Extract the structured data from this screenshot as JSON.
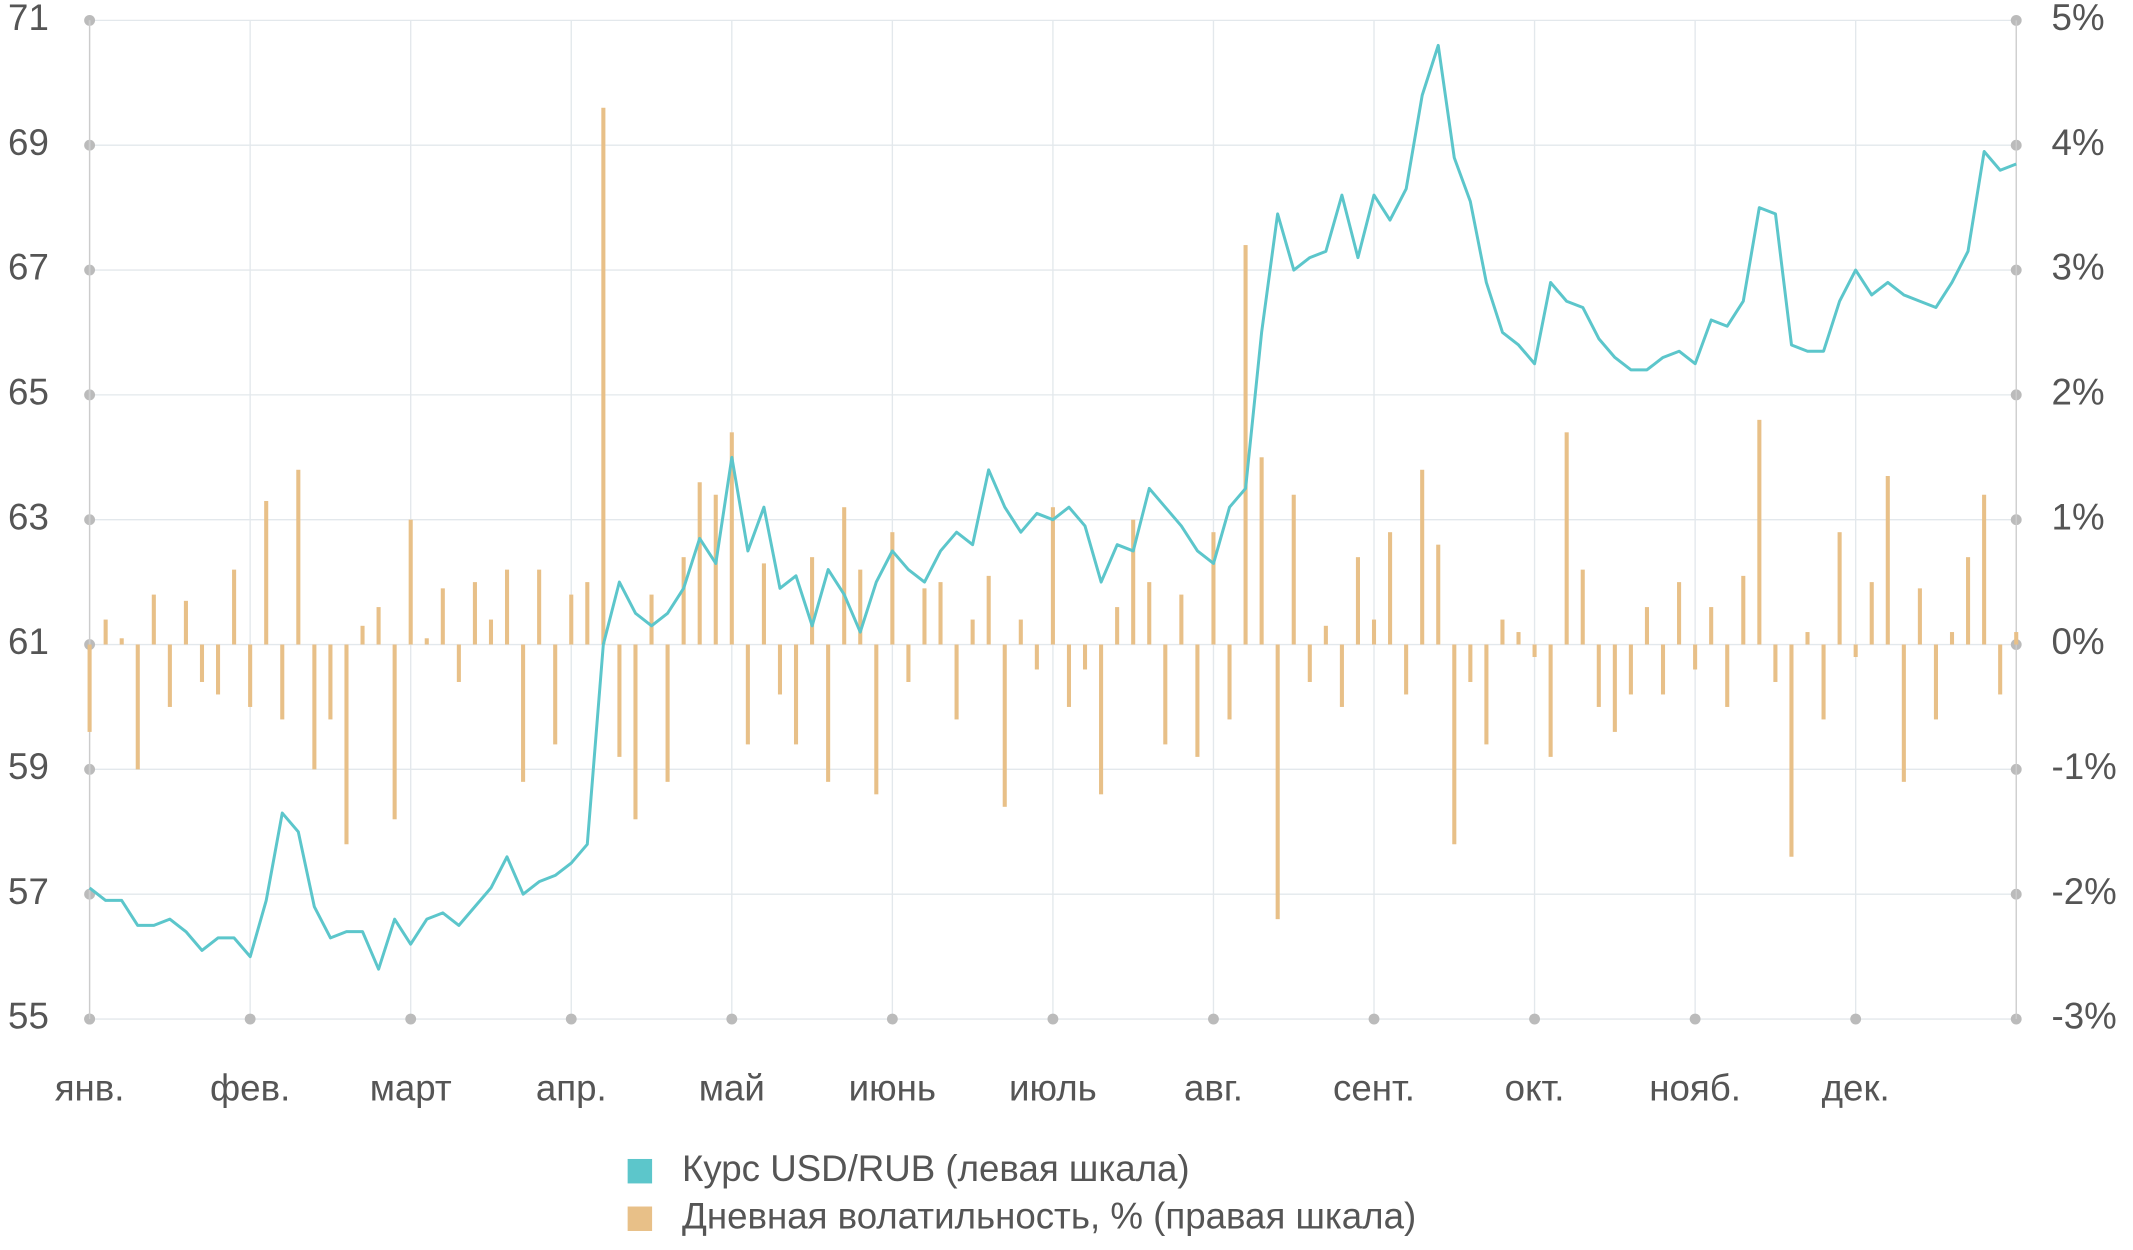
{
  "chart_data": {
    "type": "bar-line",
    "x": [
      0,
      0.1,
      0.2,
      0.3,
      0.4,
      0.5,
      0.6,
      0.7,
      0.8,
      0.9,
      1,
      1.1,
      1.2,
      1.3,
      1.4,
      1.5,
      1.6,
      1.7,
      1.8,
      1.9,
      2,
      2.1,
      2.2,
      2.3,
      2.4,
      2.5,
      2.6,
      2.7,
      2.8,
      2.9,
      3,
      3.1,
      3.2,
      3.3,
      3.4,
      3.5,
      3.6,
      3.7,
      3.8,
      3.9,
      4,
      4.1,
      4.2,
      4.3,
      4.4,
      4.5,
      4.6,
      4.7,
      4.8,
      4.9,
      5,
      5.1,
      5.2,
      5.3,
      5.4,
      5.5,
      5.6,
      5.7,
      5.8,
      5.9,
      6,
      6.1,
      6.2,
      6.3,
      6.4,
      6.5,
      6.6,
      6.7,
      6.8,
      6.9,
      7,
      7.1,
      7.2,
      7.3,
      7.4,
      7.5,
      7.6,
      7.7,
      7.8,
      7.9,
      8,
      8.1,
      8.2,
      8.3,
      8.4,
      8.5,
      8.6,
      8.7,
      8.8,
      8.9,
      9,
      9.1,
      9.2,
      9.3,
      9.4,
      9.5,
      9.6,
      9.7,
      9.8,
      9.9,
      10,
      10.1,
      10.2,
      10.3,
      10.4,
      10.5,
      10.6,
      10.7,
      10.8,
      10.9,
      11,
      11.1,
      11.2,
      11.3,
      11.4,
      11.5,
      11.6,
      11.7,
      11.8,
      11.9,
      12
    ],
    "xlim": [
      0,
      12
    ],
    "xticks": [
      {
        "value": 0,
        "label": "янв."
      },
      {
        "value": 1,
        "label": "фев."
      },
      {
        "value": 2,
        "label": "март"
      },
      {
        "value": 3,
        "label": "апр."
      },
      {
        "value": 4,
        "label": "май"
      },
      {
        "value": 5,
        "label": "июнь"
      },
      {
        "value": 6,
        "label": "июль"
      },
      {
        "value": 7,
        "label": "авг."
      },
      {
        "value": 8,
        "label": "сент."
      },
      {
        "value": 9,
        "label": "окт."
      },
      {
        "value": 10,
        "label": "нояб."
      },
      {
        "value": 11,
        "label": "дек."
      }
    ],
    "ylim": [
      55,
      71
    ],
    "yticks": [
      55,
      57,
      59,
      61,
      63,
      65,
      67,
      69,
      71
    ],
    "y2lim": [
      -3,
      5
    ],
    "y2ticks": [
      {
        "value": -3,
        "label": "-3%"
      },
      {
        "value": -2,
        "label": "-2%"
      },
      {
        "value": -1,
        "label": "-1%"
      },
      {
        "value": 0,
        "label": "0%"
      },
      {
        "value": 1,
        "label": "1%"
      },
      {
        "value": 2,
        "label": "2%"
      },
      {
        "value": 3,
        "label": "3%"
      },
      {
        "value": 4,
        "label": "4%"
      },
      {
        "value": 5,
        "label": "5%"
      }
    ],
    "grid": true,
    "series": [
      {
        "name": "Курс USD/RUB (левая шкала)",
        "type": "line",
        "color": "#5cc6cb",
        "values": [
          57.1,
          56.9,
          56.9,
          56.5,
          56.5,
          56.6,
          56.4,
          56.1,
          56.3,
          56.3,
          56.0,
          56.9,
          58.3,
          58.0,
          56.8,
          56.3,
          56.4,
          56.4,
          55.8,
          56.6,
          56.2,
          56.6,
          56.7,
          56.5,
          56.8,
          57.1,
          57.6,
          57.0,
          57.2,
          57.3,
          57.5,
          57.8,
          61.0,
          62.0,
          61.5,
          61.3,
          61.5,
          61.9,
          62.7,
          62.3,
          64.0,
          62.5,
          63.2,
          61.9,
          62.1,
          61.3,
          62.2,
          61.8,
          61.2,
          62.0,
          62.5,
          62.2,
          62.0,
          62.5,
          62.8,
          62.6,
          63.8,
          63.2,
          62.8,
          63.1,
          63.0,
          63.2,
          62.9,
          62.0,
          62.6,
          62.5,
          63.5,
          63.2,
          62.9,
          62.5,
          62.3,
          63.2,
          63.5,
          66.0,
          67.9,
          67.0,
          67.2,
          67.3,
          68.2,
          67.2,
          68.2,
          67.8,
          68.3,
          69.8,
          70.6,
          68.8,
          68.1,
          66.8,
          66.0,
          65.8,
          65.5,
          66.8,
          66.5,
          66.4,
          65.9,
          65.6,
          65.4,
          65.4,
          65.6,
          65.7,
          65.5,
          66.2,
          66.1,
          66.5,
          68.0,
          67.9,
          65.8,
          65.7,
          65.7,
          66.5,
          67.0,
          66.6,
          66.8,
          66.6,
          66.5,
          66.4,
          66.8,
          67.3,
          68.9,
          68.6,
          68.7
        ]
      },
      {
        "name": "Дневная волатильность, % (правая шкала)",
        "type": "bar",
        "axis": "y2",
        "color": "#e8c088",
        "values": [
          -0.7,
          0.2,
          0.05,
          -1.0,
          0.4,
          -0.5,
          0.35,
          -0.3,
          -0.4,
          0.6,
          -0.5,
          1.15,
          -0.6,
          1.4,
          -1.0,
          -0.6,
          -1.6,
          0.15,
          0.3,
          -1.4,
          1.0,
          0.05,
          0.45,
          -0.3,
          0.5,
          0.2,
          0.6,
          -1.1,
          0.6,
          -0.8,
          0.4,
          0.5,
          4.3,
          -0.9,
          -1.4,
          0.4,
          -1.1,
          0.7,
          1.3,
          1.2,
          1.7,
          -0.8,
          0.65,
          -0.4,
          -0.8,
          0.7,
          -1.1,
          1.1,
          0.6,
          -1.2,
          0.9,
          -0.3,
          0.45,
          0.5,
          -0.6,
          0.2,
          0.55,
          -1.3,
          0.2,
          -0.2,
          1.1,
          -0.5,
          -0.2,
          -1.2,
          0.3,
          1.0,
          0.5,
          -0.8,
          0.4,
          -0.9,
          0.9,
          -0.6,
          3.2,
          1.5,
          -2.2,
          1.2,
          -0.3,
          0.15,
          -0.5,
          0.7,
          0.2,
          0.9,
          -0.4,
          1.4,
          0.8,
          -1.6,
          -0.3,
          -0.8,
          0.2,
          0.1,
          -0.1,
          -0.9,
          1.7,
          0.6,
          -0.5,
          -0.7,
          -0.4,
          0.3,
          -0.4,
          0.5,
          -0.2,
          0.3,
          -0.5,
          0.55,
          1.8,
          -0.3,
          -1.7,
          0.1,
          -0.6,
          0.9,
          -0.1,
          0.5,
          1.35,
          -1.1,
          0.45,
          -0.6,
          0.1,
          0.7,
          1.2,
          -0.4,
          0.1
        ]
      }
    ]
  }
}
